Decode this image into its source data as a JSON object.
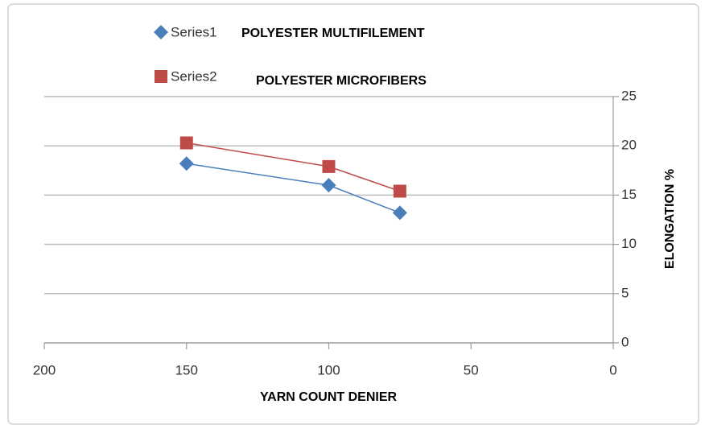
{
  "chart_data": {
    "type": "line",
    "x": [
      150,
      100,
      75
    ],
    "series": [
      {
        "name": "Series1",
        "color": "#4a7ebb",
        "marker": "diamond",
        "values": [
          18.2,
          16.0,
          13.2
        ]
      },
      {
        "name": "Series2",
        "color": "#be4b48",
        "marker": "square",
        "values": [
          20.3,
          17.9,
          15.4
        ]
      }
    ],
    "annotations": [
      "POLYESTER MULTIFILEMENT",
      "POLYESTER MICROFIBERS"
    ],
    "xlabel": "YARN COUNT DENIER",
    "ylabel": "ELONGATION %",
    "xlim": [
      200,
      0
    ],
    "xticks": [
      200,
      150,
      100,
      50,
      0
    ],
    "ylim": [
      0,
      25
    ],
    "yticks": [
      0,
      5,
      10,
      15,
      20,
      25
    ],
    "y_axis_side": "right",
    "grid": true,
    "legend": "top"
  }
}
